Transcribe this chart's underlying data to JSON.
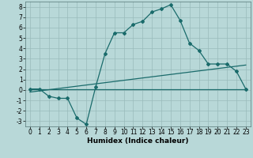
{
  "title": "",
  "xlabel": "Humidex (Indice chaleur)",
  "bg_color": "#b8d8d8",
  "line_color": "#1a6b6b",
  "grid_color": "#99bbbb",
  "xlim": [
    -0.5,
    23.5
  ],
  "ylim": [
    -3.5,
    8.5
  ],
  "xticks": [
    0,
    1,
    2,
    3,
    4,
    5,
    6,
    7,
    8,
    9,
    10,
    11,
    12,
    13,
    14,
    15,
    16,
    17,
    18,
    19,
    20,
    21,
    22,
    23
  ],
  "yticks": [
    -3,
    -2,
    -1,
    0,
    1,
    2,
    3,
    4,
    5,
    6,
    7,
    8
  ],
  "curve1_x": [
    0,
    1,
    2,
    3,
    4,
    5,
    6,
    7,
    8,
    9,
    10,
    11,
    12,
    13,
    14,
    15,
    16,
    17,
    18,
    19,
    20,
    21,
    22,
    23
  ],
  "curve1_y": [
    0.1,
    0.1,
    -0.6,
    -0.8,
    -0.8,
    -2.7,
    -3.3,
    0.3,
    3.5,
    5.5,
    5.5,
    6.3,
    6.6,
    7.5,
    7.8,
    8.2,
    6.7,
    4.5,
    3.8,
    2.5,
    2.5,
    2.5,
    1.8,
    0.1
  ],
  "curve2_x": [
    0,
    23
  ],
  "curve2_y": [
    0.05,
    0.05
  ],
  "curve3_x": [
    0,
    23
  ],
  "curve3_y": [
    -0.2,
    2.4
  ],
  "xlabel_fontsize": 6.5,
  "tick_fontsize": 5.5
}
